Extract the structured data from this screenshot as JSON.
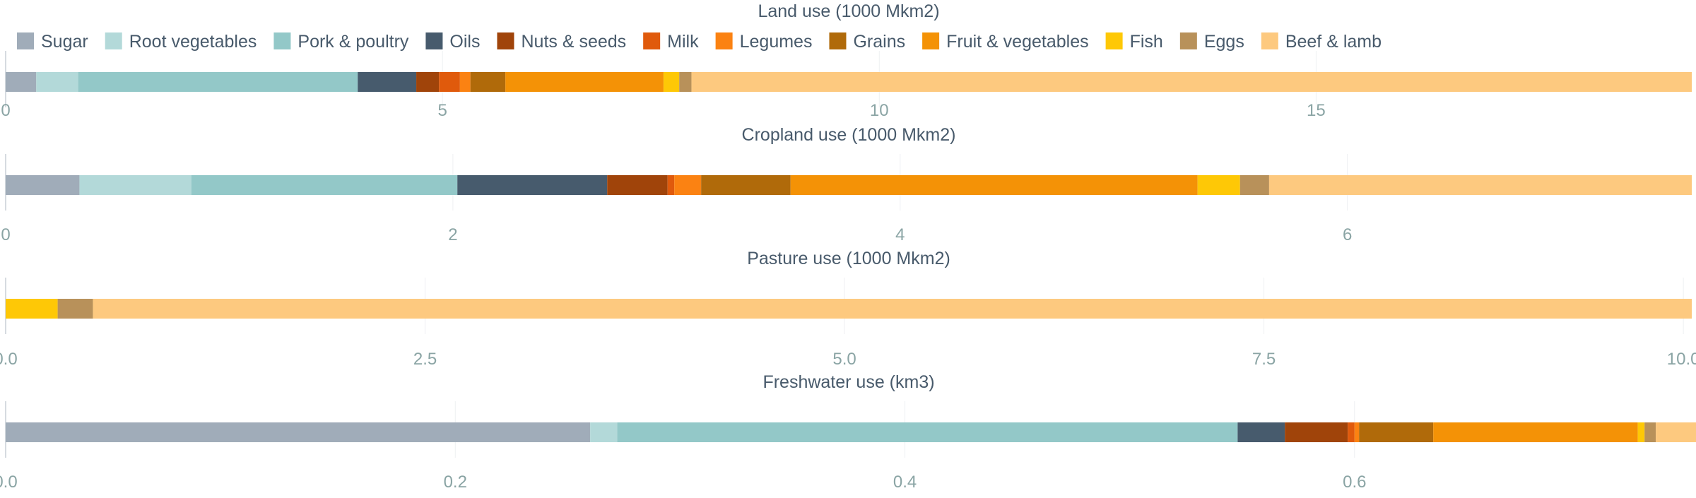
{
  "legend": {
    "placement": "top-left",
    "items": [
      {
        "name": "Sugar",
        "color": "#a0acb9"
      },
      {
        "name": "Root vegetables",
        "color": "#b3d9d9"
      },
      {
        "name": "Pork & poultry",
        "color": "#93c8c8"
      },
      {
        "name": "Oils",
        "color": "#475b6d"
      },
      {
        "name": "Nuts & seeds",
        "color": "#a0440a"
      },
      {
        "name": "Milk",
        "color": "#e05a0c"
      },
      {
        "name": "Legumes",
        "color": "#fb8212"
      },
      {
        "name": "Grains",
        "color": "#b06a0a"
      },
      {
        "name": "Fruit & vegetables",
        "color": "#f49206"
      },
      {
        "name": "Fish",
        "color": "#fec806"
      },
      {
        "name": "Eggs",
        "color": "#b8915a"
      },
      {
        "name": "Beef & lamb",
        "color": "#fdc97f"
      }
    ]
  },
  "chart_data": [
    {
      "type": "bar",
      "orientation": "horizontal",
      "stacked": true,
      "title": "Land use (1000 Mkm2)",
      "xlim": [
        0,
        19.3
      ],
      "ticks": [
        "0",
        "5",
        "10",
        "15"
      ],
      "tick_values": [
        0,
        5,
        10,
        15
      ],
      "grid": true,
      "series": [
        {
          "name": "Sugar",
          "value": 0.35
        },
        {
          "name": "Root vegetables",
          "value": 0.48
        },
        {
          "name": "Pork & poultry",
          "value": 3.2
        },
        {
          "name": "Oils",
          "value": 0.67
        },
        {
          "name": "Nuts & seeds",
          "value": 0.26
        },
        {
          "name": "Milk",
          "value": 0.24
        },
        {
          "name": "Legumes",
          "value": 0.12
        },
        {
          "name": "Grains",
          "value": 0.4
        },
        {
          "name": "Fruit & vegetables",
          "value": 1.81
        },
        {
          "name": "Fish",
          "value": 0.18
        },
        {
          "name": "Eggs",
          "value": 0.14
        },
        {
          "name": "Beef & lamb",
          "value": 11.45
        }
      ]
    },
    {
      "type": "bar",
      "orientation": "horizontal",
      "stacked": true,
      "title": "Cropland use (1000 Mkm2)",
      "xlim": [
        0,
        7.54
      ],
      "ticks": [
        "0",
        "2",
        "4",
        "6"
      ],
      "tick_values": [
        0,
        2,
        4,
        6
      ],
      "grid": true,
      "series": [
        {
          "name": "Sugar",
          "value": 0.33
        },
        {
          "name": "Root vegetables",
          "value": 0.5
        },
        {
          "name": "Pork & poultry",
          "value": 1.19
        },
        {
          "name": "Oils",
          "value": 0.67
        },
        {
          "name": "Nuts & seeds",
          "value": 0.27
        },
        {
          "name": "Milk",
          "value": 0.03
        },
        {
          "name": "Legumes",
          "value": 0.12
        },
        {
          "name": "Grains",
          "value": 0.4
        },
        {
          "name": "Fruit & vegetables",
          "value": 1.82
        },
        {
          "name": "Fish",
          "value": 0.19
        },
        {
          "name": "Eggs",
          "value": 0.13
        },
        {
          "name": "Beef & lamb",
          "value": 1.89
        }
      ]
    },
    {
      "type": "bar",
      "orientation": "horizontal",
      "stacked": true,
      "title": "Pasture use (1000 Mkm2)",
      "xlim": [
        0,
        10.05
      ],
      "ticks": [
        "0.0",
        "2.5",
        "5.0",
        "7.5",
        "10.0"
      ],
      "tick_values": [
        0,
        2.5,
        5,
        7.5,
        10
      ],
      "grid": true,
      "series": [
        {
          "name": "Fish",
          "value": 0.31
        },
        {
          "name": "Eggs",
          "value": 0.21
        },
        {
          "name": "Beef & lamb",
          "value": 9.53
        }
      ]
    },
    {
      "type": "bar",
      "orientation": "horizontal",
      "stacked": true,
      "title": "Freshwater use (km3)",
      "xlim": [
        0,
        0.75
      ],
      "ticks": [
        "0.0",
        "0.2",
        "0.4",
        "0.6"
      ],
      "tick_values": [
        0,
        0.2,
        0.4,
        0.6
      ],
      "grid": true,
      "series": [
        {
          "name": "Sugar",
          "value": 0.26
        },
        {
          "name": "Root vegetables",
          "value": 0.012
        },
        {
          "name": "Pork & poultry",
          "value": 0.276
        },
        {
          "name": "Oils",
          "value": 0.021
        },
        {
          "name": "Nuts & seeds",
          "value": 0.028
        },
        {
          "name": "Milk",
          "value": 0.003
        },
        {
          "name": "Legumes",
          "value": 0.002
        },
        {
          "name": "Grains",
          "value": 0.033
        },
        {
          "name": "Fruit & vegetables",
          "value": 0.091
        },
        {
          "name": "Fish",
          "value": 0.003
        },
        {
          "name": "Eggs",
          "value": 0.005
        },
        {
          "name": "Beef & lamb",
          "value": 0.019
        }
      ]
    }
  ]
}
